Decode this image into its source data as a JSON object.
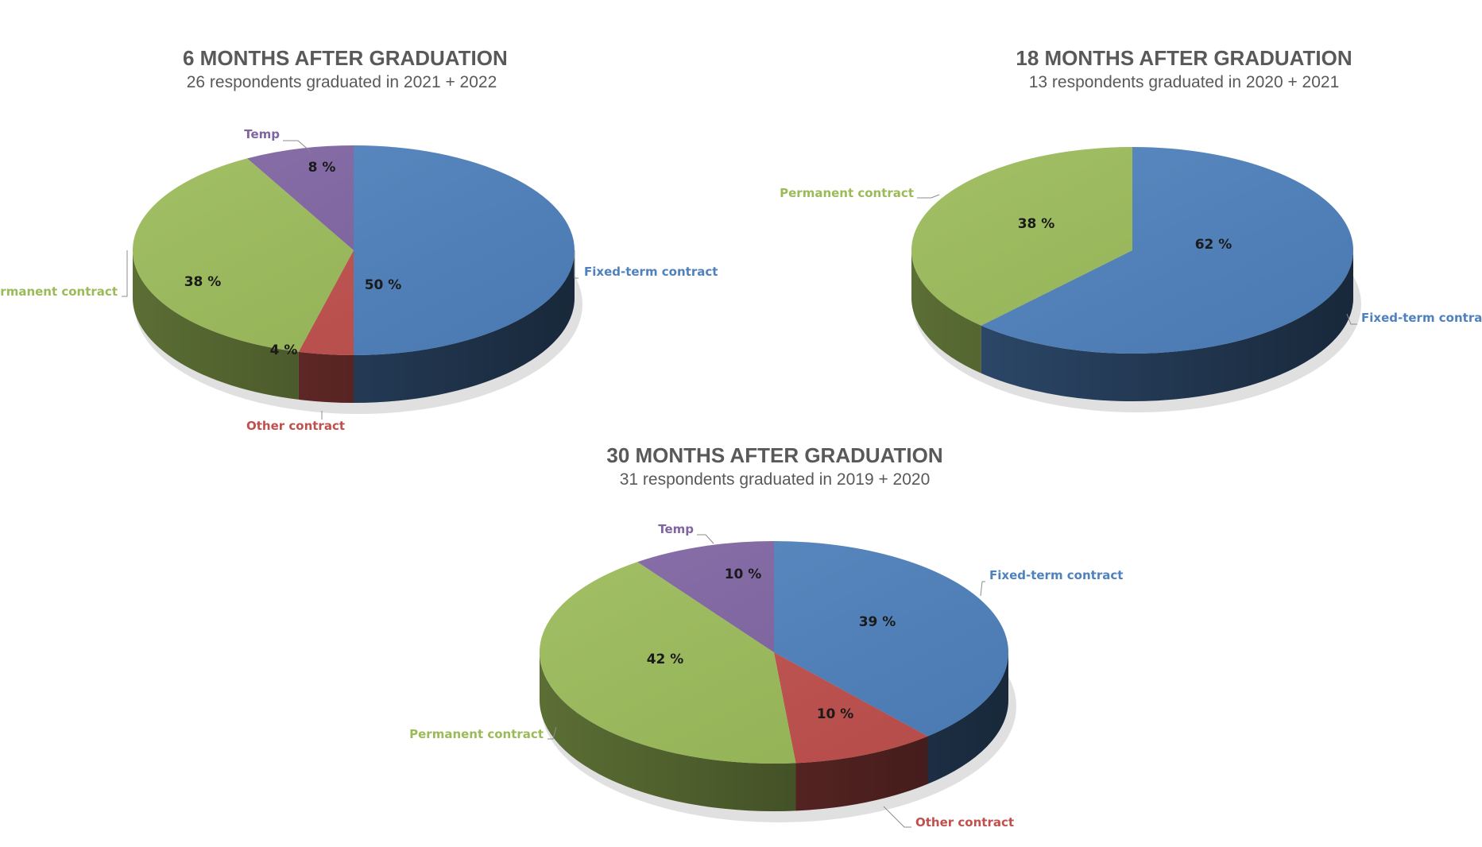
{
  "chart_data": [
    {
      "type": "pie",
      "title": "6 MONTHS AFTER GRADUATION",
      "subtitle": "26 respondents graduated in 2021 + 2022",
      "slices": [
        {
          "label": "Fixed-term contract",
          "value": 50,
          "display": "50 %",
          "color": "#4f81bd"
        },
        {
          "label": "Other contract",
          "value": 4,
          "display": "4 %",
          "color": "#c0504d"
        },
        {
          "label": "Permanent contract",
          "value": 38,
          "display": "38 %",
          "color": "#9bbb59"
        },
        {
          "label": "Temp",
          "value": 8,
          "display": "8 %",
          "color": "#8064a2"
        }
      ]
    },
    {
      "type": "pie",
      "title": "18 MONTHS AFTER GRADUATION",
      "subtitle": "13 respondents graduated in 2020 + 2021",
      "slices": [
        {
          "label": "Fixed-term contract",
          "value": 62,
          "display": "62 %",
          "color": "#4f81bd"
        },
        {
          "label": "Permanent contract",
          "value": 38,
          "display": "38 %",
          "color": "#9bbb59"
        }
      ]
    },
    {
      "type": "pie",
      "title": "30 MONTHS AFTER GRADUATION",
      "subtitle": "31 respondents graduated in 2019 + 2020",
      "slices": [
        {
          "label": "Fixed-term contract",
          "value": 39,
          "display": "39 %",
          "color": "#4f81bd"
        },
        {
          "label": "Other contract",
          "value": 10,
          "display": "10 %",
          "color": "#c0504d"
        },
        {
          "label": "Permanent contract",
          "value": 42,
          "display": "42 %",
          "color": "#9bbb59"
        },
        {
          "label": "Temp",
          "value": 10,
          "display": "10 %",
          "color": "#8064a2"
        }
      ]
    }
  ]
}
